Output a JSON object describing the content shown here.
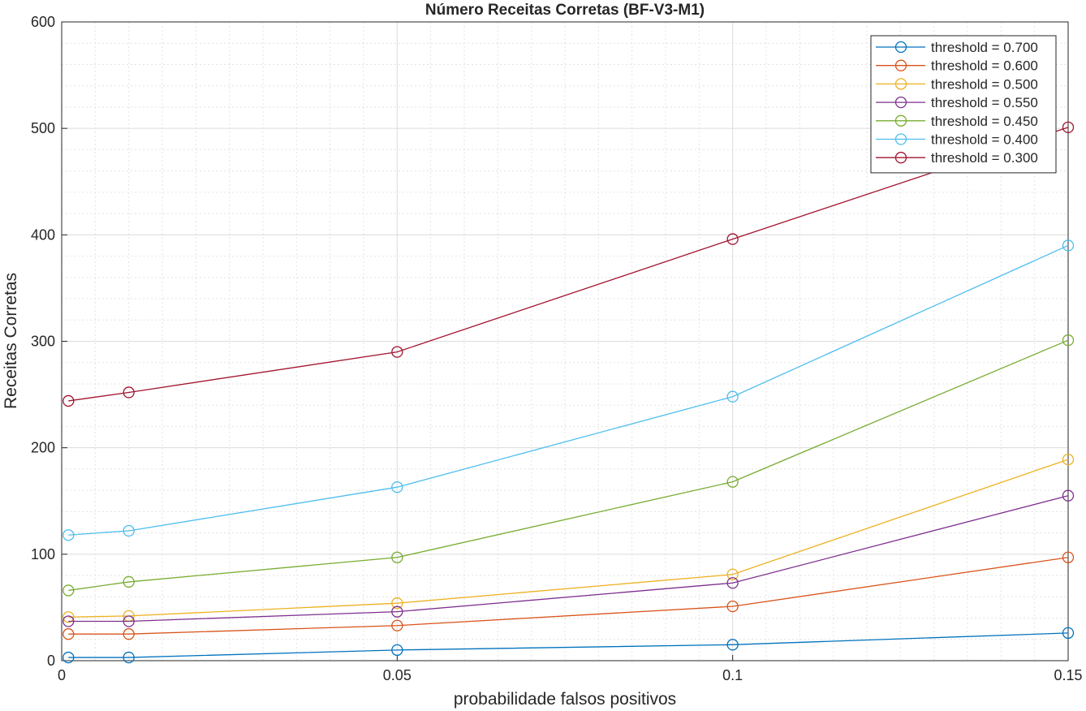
{
  "chart_data": {
    "type": "line",
    "title": "Número Receitas Corretas (BF-V3-M1)",
    "xlabel": "probabilidade falsos positivos",
    "ylabel": "Receitas Corretas",
    "xlim": [
      0,
      0.15
    ],
    "ylim": [
      0,
      600
    ],
    "xticks": [
      0,
      0.05,
      0.1,
      0.15
    ],
    "xtick_labels": [
      "0",
      "0.05",
      "0.1",
      "0.15"
    ],
    "yticks": [
      0,
      100,
      200,
      300,
      400,
      500,
      600
    ],
    "ytick_labels": [
      "0",
      "100",
      "200",
      "300",
      "400",
      "500",
      "600"
    ],
    "grid": true,
    "minor_grid": true,
    "legend_position": "top-right",
    "marker": "circle",
    "x": [
      0.001,
      0.01,
      0.05,
      0.1,
      0.15
    ],
    "series": [
      {
        "name": "threshold = 0.700",
        "color": "#0072BD",
        "values": [
          3,
          3,
          10,
          15,
          26
        ]
      },
      {
        "name": "threshold = 0.600",
        "color": "#D95319",
        "values": [
          25,
          25,
          33,
          51,
          97
        ]
      },
      {
        "name": "threshold = 0.500",
        "color": "#EDB120",
        "values": [
          41,
          42,
          54,
          81,
          189
        ]
      },
      {
        "name": "threshold = 0.550",
        "color": "#7E2F8E",
        "values": [
          37,
          37,
          46,
          73,
          155
        ]
      },
      {
        "name": "threshold = 0.450",
        "color": "#77AC30",
        "values": [
          66,
          74,
          97,
          168,
          301
        ]
      },
      {
        "name": "threshold = 0.400",
        "color": "#4DBEEE",
        "values": [
          118,
          122,
          163,
          248,
          390
        ]
      },
      {
        "name": "threshold = 0.300",
        "color": "#A2142F",
        "values": [
          244,
          252,
          290,
          396,
          501
        ]
      }
    ]
  }
}
